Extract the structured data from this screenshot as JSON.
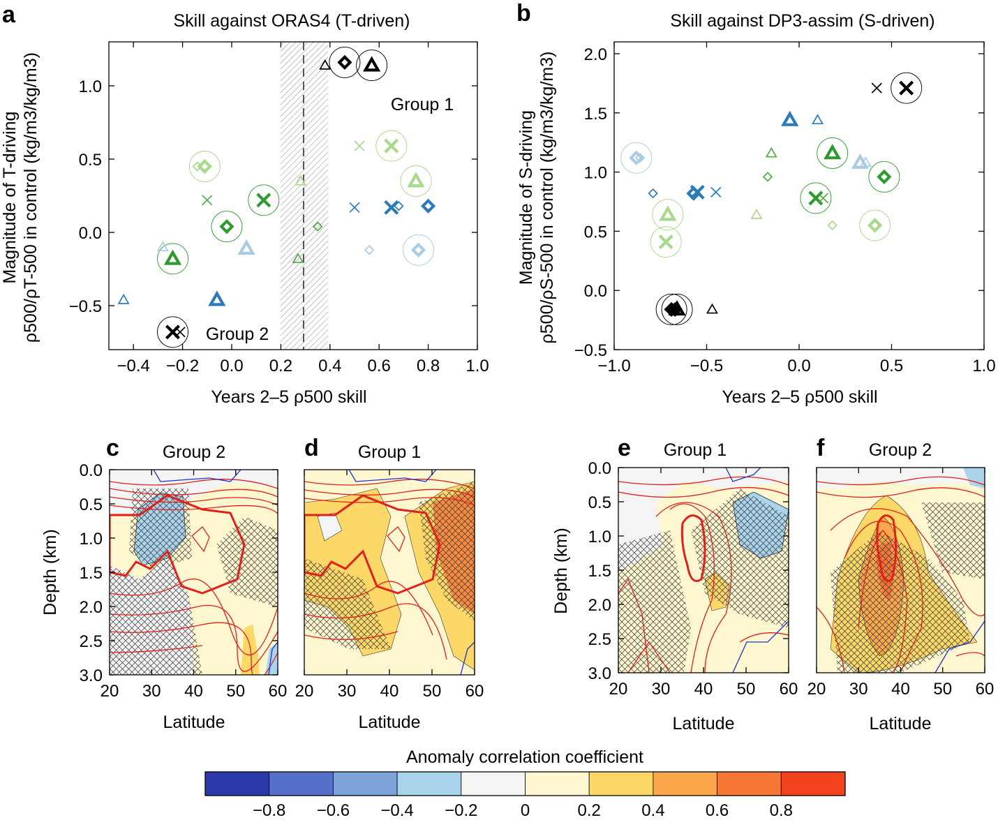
{
  "colors": {
    "dark_green": "#2e9a2e",
    "mid_green": "#52a84a",
    "light_green": "#a8d88a",
    "dark_blue": "#2b7bba",
    "light_blue": "#a9cbe3",
    "black": "#000000",
    "red_contour": "#e0201a",
    "blue_contour": "#1c30c8"
  },
  "chart_data": [
    {
      "panel": "a",
      "type": "scatter",
      "title": "Skill against ORAS4 (T-driven)",
      "xlabel": "Years 2–5 ρ500 skill",
      "ylabel_line1": "Magnitude of T-driving",
      "ylabel_line2": "ρ500/ρT-500 in control (kg/m3/kg/m3)",
      "xlim": [
        -0.5,
        1.0
      ],
      "ylim": [
        -0.8,
        1.3
      ],
      "xticks": [
        "−0.4",
        "−0.2",
        "0.0",
        "0.2",
        "0.4",
        "0.6",
        "0.8",
        "1.0"
      ],
      "xtick_values": [
        -0.4,
        -0.2,
        0.0,
        0.2,
        0.4,
        0.6,
        0.8,
        1.0
      ],
      "yticks": [
        "−0.5",
        "0.0",
        "0.5",
        "1.0"
      ],
      "ytick_values": [
        -0.5,
        0.0,
        0.5,
        1.0
      ],
      "threshold_x": 0.3,
      "threshold_band": [
        0.2,
        0.4
      ],
      "annotations": [
        {
          "text": "Group 1",
          "x": 0.67,
          "y": 0.88
        },
        {
          "text": "Group 2",
          "x": -0.16,
          "y": -0.69
        }
      ],
      "points": [
        {
          "marker": "triangle",
          "color": "black",
          "bold": false,
          "circled": false,
          "x": 0.38,
          "y": 1.14
        },
        {
          "marker": "diamond",
          "color": "black",
          "bold": true,
          "circled": true,
          "x": 0.46,
          "y": 1.16
        },
        {
          "marker": "triangle",
          "color": "black",
          "bold": true,
          "circled": true,
          "x": 0.57,
          "y": 1.14
        },
        {
          "marker": "cross",
          "color": "light_green",
          "bold": false,
          "circled": false,
          "x": 0.52,
          "y": 0.59
        },
        {
          "marker": "cross",
          "color": "light_green",
          "bold": true,
          "circled": true,
          "x": 0.65,
          "y": 0.59
        },
        {
          "marker": "triangle",
          "color": "light_green",
          "bold": true,
          "circled": true,
          "x": 0.75,
          "y": 0.35
        },
        {
          "marker": "diamond",
          "color": "light_green",
          "bold": false,
          "circled": false,
          "x": -0.14,
          "y": 0.45
        },
        {
          "marker": "diamond",
          "color": "light_green",
          "bold": true,
          "circled": true,
          "x": -0.11,
          "y": 0.45
        },
        {
          "marker": "triangle",
          "color": "light_green",
          "bold": false,
          "circled": false,
          "x": 0.28,
          "y": 0.35
        },
        {
          "marker": "cross",
          "color": "mid_green",
          "bold": false,
          "circled": false,
          "x": -0.1,
          "y": 0.22
        },
        {
          "marker": "cross",
          "color": "dark_green",
          "bold": true,
          "circled": true,
          "x": 0.13,
          "y": 0.22
        },
        {
          "marker": "diamond",
          "color": "dark_green",
          "bold": true,
          "circled": true,
          "x": -0.02,
          "y": 0.04
        },
        {
          "marker": "diamond",
          "color": "mid_green",
          "bold": false,
          "circled": false,
          "x": 0.35,
          "y": 0.04
        },
        {
          "marker": "triangle",
          "color": "mid_green",
          "bold": false,
          "circled": false,
          "x": 0.27,
          "y": -0.18
        },
        {
          "marker": "triangle",
          "color": "dark_green",
          "bold": true,
          "circled": true,
          "x": -0.24,
          "y": -0.18
        },
        {
          "marker": "triangle",
          "color": "light_blue",
          "bold": false,
          "circled": false,
          "x": -0.28,
          "y": -0.1
        },
        {
          "marker": "triangle",
          "color": "light_blue",
          "bold": true,
          "circled": false,
          "x": 0.06,
          "y": -0.11
        },
        {
          "marker": "triangle",
          "color": "dark_blue",
          "bold": false,
          "circled": false,
          "x": -0.44,
          "y": -0.46
        },
        {
          "marker": "triangle",
          "color": "dark_blue",
          "bold": true,
          "circled": false,
          "x": -0.06,
          "y": -0.46
        },
        {
          "marker": "cross",
          "color": "dark_blue",
          "bold": false,
          "circled": false,
          "x": 0.5,
          "y": 0.17
        },
        {
          "marker": "cross",
          "color": "dark_blue",
          "bold": true,
          "circled": false,
          "x": 0.65,
          "y": 0.17
        },
        {
          "marker": "diamond",
          "color": "dark_blue",
          "bold": false,
          "circled": false,
          "x": 0.68,
          "y": 0.18
        },
        {
          "marker": "diamond",
          "color": "dark_blue",
          "bold": true,
          "circled": false,
          "x": 0.8,
          "y": 0.18
        },
        {
          "marker": "diamond",
          "color": "light_blue",
          "bold": false,
          "circled": false,
          "x": 0.56,
          "y": -0.12
        },
        {
          "marker": "diamond",
          "color": "light_blue",
          "bold": true,
          "circled": true,
          "x": 0.76,
          "y": -0.12
        },
        {
          "marker": "cross",
          "color": "black",
          "bold": true,
          "circled": true,
          "x": -0.24,
          "y": -0.68
        },
        {
          "marker": "cross",
          "color": "black",
          "bold": false,
          "circled": false,
          "x": -0.21,
          "y": -0.68
        }
      ]
    },
    {
      "panel": "b",
      "type": "scatter",
      "title": "Skill against DP3-assim (S-driven)",
      "xlabel": "Years 2–5 ρ500 skill",
      "ylabel_line1": "Magnitude of S-driving",
      "ylabel_line2": "ρ500/ρS-500 in control (kg/m3/kg/m3)",
      "xlim": [
        -1.0,
        1.0
      ],
      "ylim": [
        -0.5,
        2.1
      ],
      "xticks": [
        "−1.0",
        "−0.5",
        "0.0",
        "0.5",
        "1.0"
      ],
      "xtick_values": [
        -1.0,
        -0.5,
        0.0,
        0.5,
        1.0
      ],
      "yticks": [
        "−0.5",
        "0.0",
        "0.5",
        "1.0",
        "1.5",
        "2.0"
      ],
      "ytick_values": [
        -0.5,
        0.0,
        0.5,
        1.0,
        1.5,
        2.0
      ],
      "points": [
        {
          "marker": "cross",
          "color": "black",
          "bold": false,
          "circled": false,
          "x": 0.42,
          "y": 1.71
        },
        {
          "marker": "cross",
          "color": "black",
          "bold": true,
          "circled": true,
          "x": 0.58,
          "y": 1.71
        },
        {
          "marker": "triangle",
          "color": "dark_blue",
          "bold": true,
          "circled": false,
          "x": -0.05,
          "y": 1.44
        },
        {
          "marker": "triangle",
          "color": "dark_blue",
          "bold": false,
          "circled": false,
          "x": 0.1,
          "y": 1.44
        },
        {
          "marker": "triangle",
          "color": "mid_green",
          "bold": false,
          "circled": false,
          "x": -0.15,
          "y": 1.16
        },
        {
          "marker": "triangle",
          "color": "dark_green",
          "bold": true,
          "circled": true,
          "x": 0.18,
          "y": 1.16
        },
        {
          "marker": "triangle",
          "color": "light_blue",
          "bold": true,
          "circled": false,
          "x": 0.33,
          "y": 1.08
        },
        {
          "marker": "triangle",
          "color": "light_blue",
          "bold": false,
          "circled": false,
          "x": 0.36,
          "y": 1.08
        },
        {
          "marker": "diamond",
          "color": "light_blue",
          "bold": true,
          "circled": true,
          "x": -0.88,
          "y": 1.12
        },
        {
          "marker": "diamond",
          "color": "light_blue",
          "bold": false,
          "circled": false,
          "x": -0.86,
          "y": 1.12
        },
        {
          "marker": "diamond",
          "color": "mid_green",
          "bold": false,
          "circled": false,
          "x": -0.17,
          "y": 0.96
        },
        {
          "marker": "diamond",
          "color": "dark_green",
          "bold": true,
          "circled": true,
          "x": 0.46,
          "y": 0.96
        },
        {
          "marker": "diamond",
          "color": "dark_blue",
          "bold": false,
          "circled": false,
          "x": -0.79,
          "y": 0.82
        },
        {
          "marker": "diamond",
          "color": "dark_blue",
          "bold": true,
          "circled": false,
          "x": -0.57,
          "y": 0.82
        },
        {
          "marker": "cross",
          "color": "dark_blue",
          "bold": true,
          "circled": false,
          "x": -0.55,
          "y": 0.83
        },
        {
          "marker": "cross",
          "color": "dark_blue",
          "bold": false,
          "circled": false,
          "x": -0.45,
          "y": 0.83
        },
        {
          "marker": "cross",
          "color": "dark_green",
          "bold": true,
          "circled": true,
          "x": 0.09,
          "y": 0.78
        },
        {
          "marker": "cross",
          "color": "mid_green",
          "bold": false,
          "circled": false,
          "x": 0.13,
          "y": 0.78
        },
        {
          "marker": "triangle",
          "color": "light_green",
          "bold": true,
          "circled": true,
          "x": -0.71,
          "y": 0.64
        },
        {
          "marker": "triangle",
          "color": "light_green",
          "bold": false,
          "circled": false,
          "x": -0.23,
          "y": 0.64
        },
        {
          "marker": "diamond",
          "color": "light_green",
          "bold": false,
          "circled": false,
          "x": 0.18,
          "y": 0.55
        },
        {
          "marker": "diamond",
          "color": "light_green",
          "bold": true,
          "circled": true,
          "x": 0.41,
          "y": 0.55
        },
        {
          "marker": "cross",
          "color": "light_green",
          "bold": true,
          "circled": true,
          "x": -0.72,
          "y": 0.41
        },
        {
          "marker": "diamond",
          "color": "black",
          "bold": true,
          "circled": true,
          "x": -0.69,
          "y": -0.16
        },
        {
          "marker": "diamond",
          "color": "black",
          "bold": true,
          "circled": false,
          "x": -0.67,
          "y": -0.16
        },
        {
          "marker": "triangle",
          "color": "black",
          "bold": true,
          "circled": true,
          "x": -0.66,
          "y": -0.16
        },
        {
          "marker": "triangle",
          "color": "black",
          "bold": false,
          "circled": false,
          "x": -0.47,
          "y": -0.16
        }
      ]
    },
    {
      "panel": "c",
      "type": "heatmap",
      "title": "Group 2",
      "xlabel": "Latitude",
      "ylabel": "Depth (km)",
      "xlim": [
        20,
        60
      ],
      "ylim": [
        3.0,
        0.0
      ],
      "xticks": [
        "20",
        "30",
        "40",
        "50",
        "60"
      ],
      "xtick_values": [
        20,
        30,
        40,
        50,
        60
      ],
      "yticks": [
        "0.0",
        "0.5",
        "1.0",
        "1.5",
        "2.0",
        "2.5",
        "3.0"
      ],
      "ytick_values": [
        0.0,
        0.5,
        1.0,
        1.5,
        2.0,
        2.5,
        3.0
      ]
    },
    {
      "panel": "d",
      "type": "heatmap",
      "title": "Group 1",
      "xlabel": "Latitude",
      "xlim": [
        20,
        60
      ],
      "ylim": [
        3.0,
        0.0
      ],
      "xticks": [
        "20",
        "30",
        "40",
        "50",
        "60"
      ],
      "xtick_values": [
        20,
        30,
        40,
        50,
        60
      ]
    },
    {
      "panel": "e",
      "type": "heatmap",
      "title": "Group 1",
      "xlabel": "Latitude",
      "ylabel": "Depth (km)",
      "xlim": [
        20,
        60
      ],
      "ylim": [
        3.0,
        0.0
      ],
      "xticks": [
        "20",
        "30",
        "40",
        "50",
        "60"
      ],
      "xtick_values": [
        20,
        30,
        40,
        50,
        60
      ],
      "yticks": [
        "0.0",
        "0.5",
        "1.0",
        "1.5",
        "2.0",
        "2.5",
        "3.0"
      ],
      "ytick_values": [
        0.0,
        0.5,
        1.0,
        1.5,
        2.0,
        2.5,
        3.0
      ]
    },
    {
      "panel": "f",
      "type": "heatmap",
      "title": "Group 2",
      "xlabel": "Latitude",
      "xlim": [
        20,
        60
      ],
      "ylim": [
        3.0,
        0.0
      ],
      "xticks": [
        "20",
        "30",
        "40",
        "50",
        "60"
      ],
      "xtick_values": [
        20,
        30,
        40,
        50,
        60
      ]
    },
    {
      "panel": "colorbar",
      "type": "heatmap",
      "title": "Anomaly correlation coefficient",
      "bounds": [
        -1.0,
        -0.8,
        -0.6,
        -0.4,
        -0.2,
        0,
        0.2,
        0.4,
        0.6,
        0.8,
        1.0
      ],
      "tick_labels": [
        "−0.8",
        "−0.6",
        "−0.4",
        "−0.2",
        "0",
        "0.2",
        "0.4",
        "0.6",
        "0.8"
      ],
      "tick_values": [
        -0.8,
        -0.6,
        -0.4,
        -0.2,
        0,
        0.2,
        0.4,
        0.6,
        0.8
      ],
      "colors": [
        "#2b3aa8",
        "#5470c8",
        "#7ea3d8",
        "#a9d4ec",
        "#f4f4f4",
        "#fff7d0",
        "#fcd868",
        "#fba84c",
        "#f67834",
        "#f2431e"
      ]
    }
  ],
  "panel_labels": {
    "a": "a",
    "b": "b",
    "c": "c",
    "d": "d",
    "e": "e",
    "f": "f"
  }
}
